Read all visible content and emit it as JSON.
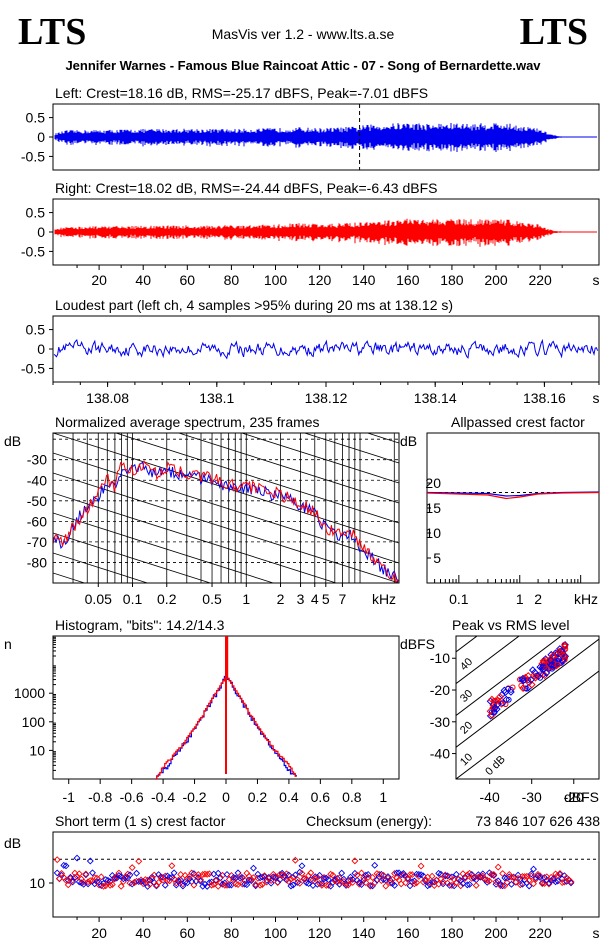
{
  "header": {
    "logo_left": "LTS",
    "logo_right": "LTS",
    "app_title": "MasVis ver 1.2 - www.lts.a.se",
    "file_title": "Jennifer Warnes - Famous Blue Raincoat Attic - 07 - Song of Bernardette.wav"
  },
  "colors": {
    "left": "#0000ee",
    "right": "#ff0000",
    "grid": "#000000"
  },
  "chart_data": [
    {
      "id": "left-waveform",
      "type": "area",
      "title": "Left: Crest=18.16 dB, RMS=-25.17 dBFS, Peak=-7.01 dBFS",
      "yticks": [
        "0.5",
        "0",
        "-0.5"
      ],
      "ylim": [
        -0.85,
        0.85
      ],
      "xlim": [
        0,
        234
      ],
      "marker_x": 138.12,
      "color": "#0000ee",
      "envelope": {
        "x": [
          0,
          5,
          20,
          40,
          60,
          80,
          100,
          110,
          120,
          130,
          138,
          140,
          150,
          160,
          170,
          180,
          190,
          200,
          210,
          220,
          224,
          228,
          234
        ],
        "amp": [
          0.08,
          0.15,
          0.16,
          0.18,
          0.19,
          0.18,
          0.2,
          0.22,
          0.2,
          0.22,
          0.24,
          0.27,
          0.3,
          0.33,
          0.3,
          0.32,
          0.3,
          0.33,
          0.28,
          0.18,
          0.08,
          0.02,
          0.0
        ]
      }
    },
    {
      "id": "right-waveform",
      "type": "area",
      "title": "Right: Crest=18.02 dB, RMS=-24.44 dBFS, Peak=-6.43 dBFS",
      "yticks": [
        "0.5",
        "0",
        "-0.5"
      ],
      "ylim": [
        -0.85,
        0.85
      ],
      "xlim": [
        0,
        234
      ],
      "xticks": [
        "20",
        "40",
        "60",
        "80",
        "100",
        "120",
        "140",
        "160",
        "180",
        "200",
        "220"
      ],
      "xunit": "s",
      "color": "#ff0000",
      "envelope": {
        "x": [
          0,
          5,
          20,
          40,
          60,
          80,
          100,
          110,
          120,
          130,
          138,
          140,
          150,
          160,
          170,
          180,
          190,
          200,
          210,
          220,
          224,
          228,
          234
        ],
        "amp": [
          0.08,
          0.12,
          0.13,
          0.14,
          0.15,
          0.15,
          0.17,
          0.2,
          0.18,
          0.2,
          0.22,
          0.24,
          0.26,
          0.3,
          0.28,
          0.3,
          0.28,
          0.3,
          0.26,
          0.16,
          0.06,
          0.02,
          0.0
        ]
      }
    },
    {
      "id": "loudest-part",
      "type": "line",
      "title": "Loudest part (left  ch, 4 samples >95% during 20 ms at 138.12 s)",
      "yticks": [
        "0.5",
        "0",
        "-0.5"
      ],
      "ylim": [
        -0.85,
        0.85
      ],
      "xlim": [
        138.07,
        138.17
      ],
      "xticks": [
        "138.08",
        "138.1",
        "138.12",
        "138.14",
        "138.16"
      ],
      "xunit": "s",
      "color": "#0000ee"
    },
    {
      "id": "avg-spectrum",
      "type": "line",
      "title": "Normalized average spectrum, 235 frames",
      "ylabel": "dB",
      "yticks": [
        "-30",
        "-40",
        "-50",
        "-60",
        "-70",
        "-80"
      ],
      "ylim": [
        -90,
        -17
      ],
      "xscale": "log",
      "xlim": [
        0.02,
        22
      ],
      "xticks": [
        "0.05",
        "0.1",
        "0.2",
        "0.5",
        "1",
        "2",
        "3",
        "4",
        "5",
        "7"
      ],
      "xunit": "kHz",
      "series": [
        {
          "color": "#0000ee",
          "x": [
            0.02,
            0.025,
            0.03,
            0.04,
            0.05,
            0.06,
            0.07,
            0.08,
            0.1,
            0.13,
            0.16,
            0.2,
            0.3,
            0.5,
            0.8,
            1,
            1.5,
            2,
            3,
            4,
            5,
            6,
            7,
            8,
            10,
            15,
            22
          ],
          "y": [
            -66,
            -72,
            -62,
            -52,
            -48,
            -42,
            -44,
            -34,
            -36,
            -33,
            -38,
            -35,
            -38,
            -40,
            -44,
            -44,
            -46,
            -48,
            -52,
            -56,
            -64,
            -66,
            -67,
            -65,
            -72,
            -82,
            -88
          ]
        },
        {
          "color": "#ff0000",
          "x": [
            0.02,
            0.025,
            0.03,
            0.04,
            0.05,
            0.06,
            0.07,
            0.08,
            0.1,
            0.13,
            0.16,
            0.2,
            0.3,
            0.5,
            0.8,
            1,
            1.5,
            2,
            3,
            4,
            5,
            6,
            7,
            8,
            10,
            15,
            22
          ],
          "y": [
            -68,
            -70,
            -63,
            -54,
            -47,
            -40,
            -43,
            -32,
            -35,
            -32,
            -37,
            -34,
            -37,
            -39,
            -43,
            -43,
            -45,
            -47,
            -51,
            -55,
            -63,
            -65,
            -66,
            -64,
            -71,
            -82,
            -89
          ]
        }
      ]
    },
    {
      "id": "allpassed-crest",
      "type": "line",
      "title": "Allpassed crest factor",
      "ylabel": "dB",
      "yticks": [
        "20",
        "15",
        "10",
        "5"
      ],
      "ylim": [
        0,
        30
      ],
      "xscale": "log",
      "xlim": [
        0.03,
        20
      ],
      "xticks": [
        "0.1",
        "1",
        "2"
      ],
      "xunit": "kHz",
      "reference_line": 18.1,
      "series": [
        {
          "color": "#0000ee",
          "x": [
            0.03,
            0.1,
            0.3,
            0.6,
            1,
            2,
            5,
            20
          ],
          "y": [
            18.1,
            18.0,
            17.9,
            17.4,
            17.5,
            17.9,
            18.1,
            18.2
          ]
        },
        {
          "color": "#ff0000",
          "x": [
            0.03,
            0.1,
            0.3,
            0.6,
            1,
            2,
            5,
            20
          ],
          "y": [
            18.0,
            17.8,
            17.6,
            16.9,
            17.2,
            17.8,
            18.0,
            18.1
          ]
        }
      ]
    },
    {
      "id": "histogram",
      "type": "line",
      "title": "Histogram, \"bits\": 14.2/14.3",
      "ylabel": "n",
      "yticks": [
        "1000",
        "100",
        "10"
      ],
      "yscale": "log",
      "ylim": [
        1,
        100000
      ],
      "xlim": [
        -1.1,
        1.1
      ],
      "xticks": [
        "-1",
        "-0.8",
        "-0.6",
        "-0.4",
        "-0.2",
        "0",
        "0.2",
        "0.4",
        "0.6",
        "0.8",
        "1"
      ],
      "series": [
        {
          "color": "#0000ee",
          "x": [
            -0.45,
            -0.4,
            -0.3,
            -0.2,
            -0.1,
            0,
            0.1,
            0.2,
            0.3,
            0.4,
            0.45
          ],
          "y": [
            1,
            2,
            10,
            60,
            500,
            4000,
            500,
            60,
            10,
            2,
            1
          ]
        },
        {
          "color": "#ff0000",
          "x": [
            -0.45,
            -0.4,
            -0.3,
            -0.2,
            -0.1,
            0,
            0.1,
            0.2,
            0.3,
            0.4,
            0.45
          ],
          "y": [
            1,
            3,
            12,
            70,
            550,
            100000,
            550,
            70,
            12,
            3,
            1
          ]
        }
      ]
    },
    {
      "id": "peak-vs-rms",
      "type": "scatter",
      "title": "Peak vs RMS level",
      "ylabel": "dBFS",
      "xlabel": "dBFS",
      "yticks": [
        "-10",
        "-20",
        "-30",
        "-40"
      ],
      "xticks": [
        "-40",
        "-30",
        "-20"
      ],
      "xlim": [
        -48,
        -14
      ],
      "ylim": [
        -48,
        -3
      ],
      "diagonal_labels": [
        "40",
        "30",
        "20",
        "10",
        "0 dB"
      ]
    },
    {
      "id": "short-term-crest",
      "type": "scatter",
      "title": "Short term (1 s) crest factor",
      "ylabel": "dB",
      "yticks": [
        "10"
      ],
      "ylim": [
        0,
        25
      ],
      "xlim": [
        0,
        234
      ],
      "xticks": [
        "20",
        "40",
        "60",
        "80",
        "100",
        "120",
        "140",
        "160",
        "180",
        "200",
        "220"
      ],
      "xunit": "s",
      "reference_line": 17,
      "checksum_label": "Checksum (energy):",
      "checksum_value": "73 846 107 626 438"
    }
  ]
}
